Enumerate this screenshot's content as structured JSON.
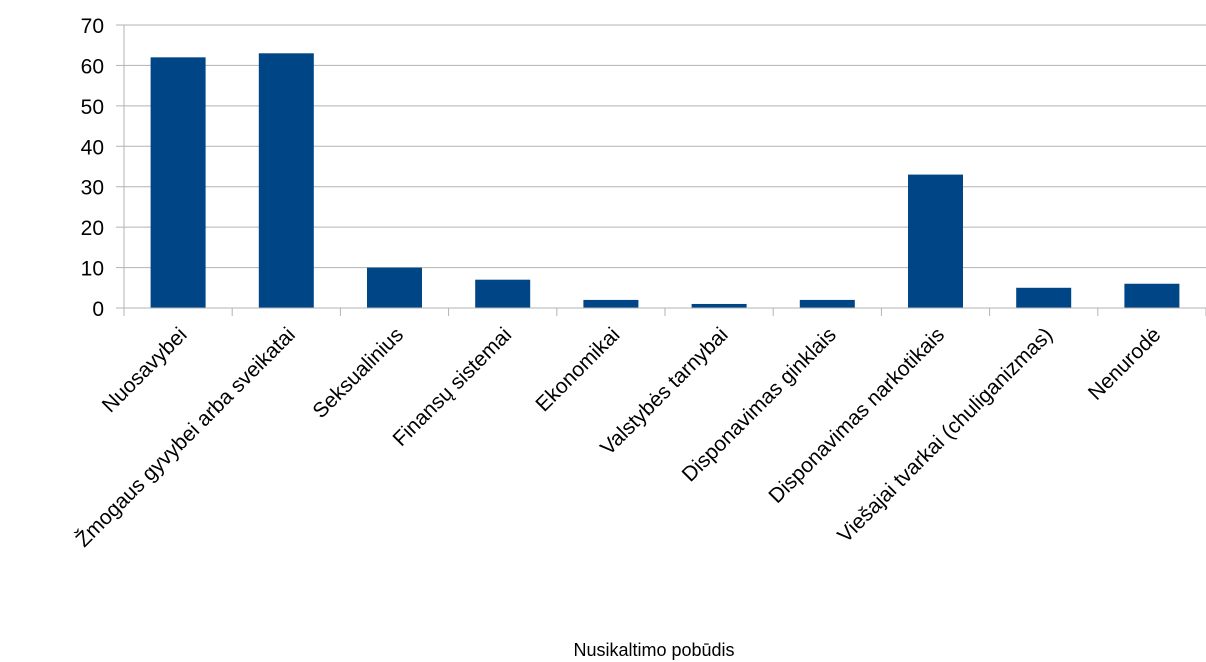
{
  "chart_data": {
    "type": "bar",
    "categories": [
      "Nuosavybei",
      "Žmogaus gyvybei arba sveikatai",
      "Seksualinius",
      "Finansų sistemai",
      "Ekonomikai",
      "Valstybės tarnybai",
      "Disponavimas ginklais",
      "Disponavimas narkotikais",
      "Viešajai tvarkai (chuliganizmas)",
      "Nenurodė"
    ],
    "values": [
      62,
      63,
      10,
      7,
      2,
      1,
      2,
      33,
      5,
      6
    ],
    "title": "",
    "xlabel": "Nusikaltimo pobūdis",
    "ylabel": "",
    "ylim": [
      0,
      70
    ],
    "yticks": [
      0,
      10,
      20,
      30,
      40,
      50,
      60,
      70
    ],
    "grid": true,
    "legend": "none",
    "colors": {
      "bar": "#004586",
      "grid": "#b3b3b3",
      "axis": "#b3b3b3"
    }
  }
}
